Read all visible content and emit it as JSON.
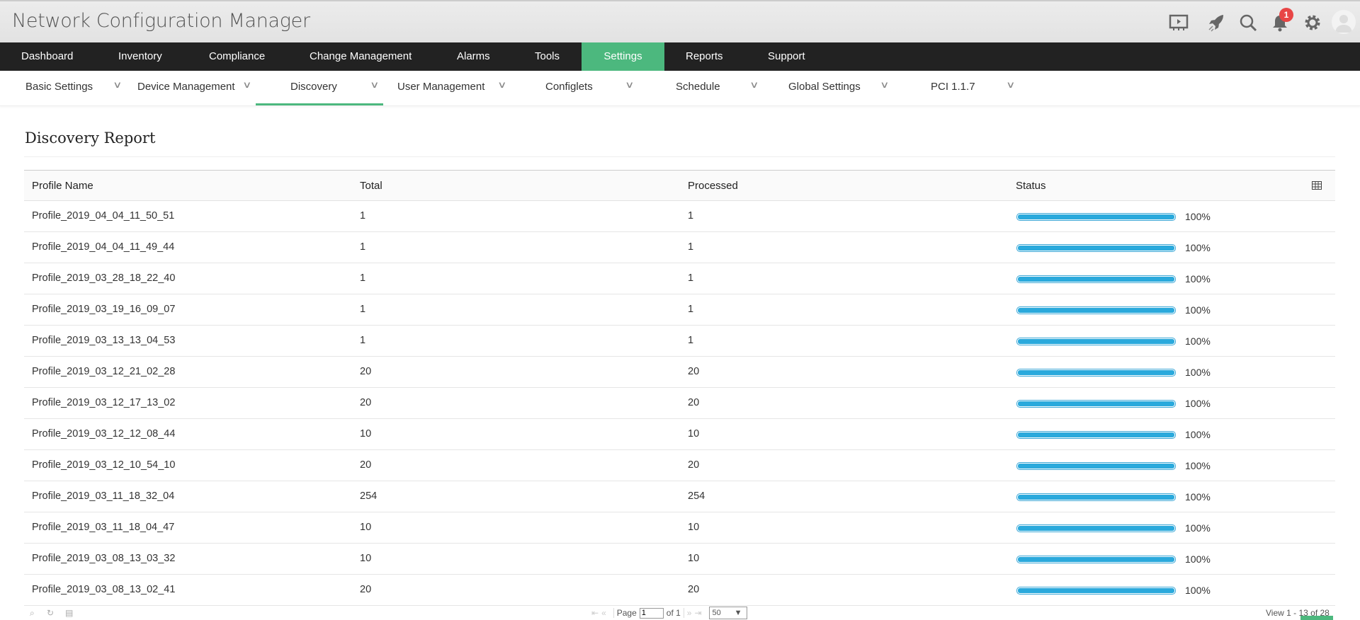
{
  "app": {
    "title": "Network Configuration Manager",
    "notification_count": "1"
  },
  "header_icons": [
    "presentation-icon",
    "rocket-icon",
    "search-icon",
    "bell-icon",
    "gear-icon",
    "user-avatar"
  ],
  "nav": {
    "items": [
      "Dashboard",
      "Inventory",
      "Compliance",
      "Change Management",
      "Alarms",
      "Tools",
      "Settings",
      "Reports",
      "Support"
    ],
    "active": "Settings"
  },
  "subnav": {
    "items": [
      "Basic Settings",
      "Device Management",
      "Discovery",
      "User Management",
      "Configlets",
      "Schedule",
      "Global Settings",
      "PCI 1.1.7"
    ],
    "active": "Discovery"
  },
  "page": {
    "title": "Discovery Report"
  },
  "table": {
    "columns": [
      "Profile Name",
      "Total",
      "Processed",
      "Status"
    ],
    "rows": [
      {
        "name": "Profile_2019_04_04_11_50_51",
        "total": "1",
        "processed": "1",
        "status": "100%",
        "progress": 100
      },
      {
        "name": "Profile_2019_04_04_11_49_44",
        "total": "1",
        "processed": "1",
        "status": "100%",
        "progress": 100
      },
      {
        "name": "Profile_2019_03_28_18_22_40",
        "total": "1",
        "processed": "1",
        "status": "100%",
        "progress": 100
      },
      {
        "name": "Profile_2019_03_19_16_09_07",
        "total": "1",
        "processed": "1",
        "status": "100%",
        "progress": 100
      },
      {
        "name": "Profile_2019_03_13_13_04_53",
        "total": "1",
        "processed": "1",
        "status": "100%",
        "progress": 100
      },
      {
        "name": "Profile_2019_03_12_21_02_28",
        "total": "20",
        "processed": "20",
        "status": "100%",
        "progress": 100
      },
      {
        "name": "Profile_2019_03_12_17_13_02",
        "total": "20",
        "processed": "20",
        "status": "100%",
        "progress": 100
      },
      {
        "name": "Profile_2019_03_12_12_08_44",
        "total": "10",
        "processed": "10",
        "status": "100%",
        "progress": 100
      },
      {
        "name": "Profile_2019_03_12_10_54_10",
        "total": "20",
        "processed": "20",
        "status": "100%",
        "progress": 100
      },
      {
        "name": "Profile_2019_03_11_18_32_04",
        "total": "254",
        "processed": "254",
        "status": "100%",
        "progress": 100
      },
      {
        "name": "Profile_2019_03_11_18_04_47",
        "total": "10",
        "processed": "10",
        "status": "100%",
        "progress": 100
      },
      {
        "name": "Profile_2019_03_08_13_03_32",
        "total": "10",
        "processed": "10",
        "status": "100%",
        "progress": 100
      },
      {
        "name": "Profile_2019_03_08_13_02_41",
        "total": "20",
        "processed": "20",
        "status": "100%",
        "progress": 100
      }
    ]
  },
  "pager": {
    "page_label": "Page",
    "page_value": "1",
    "of_label": "of 1",
    "page_size": "50",
    "view_text": "View 1 - 13 of 28"
  },
  "colors": {
    "accent": "#4cb87e",
    "progress": "#2aa9dc",
    "nav_bg": "#222222",
    "badge": "#e84545"
  }
}
